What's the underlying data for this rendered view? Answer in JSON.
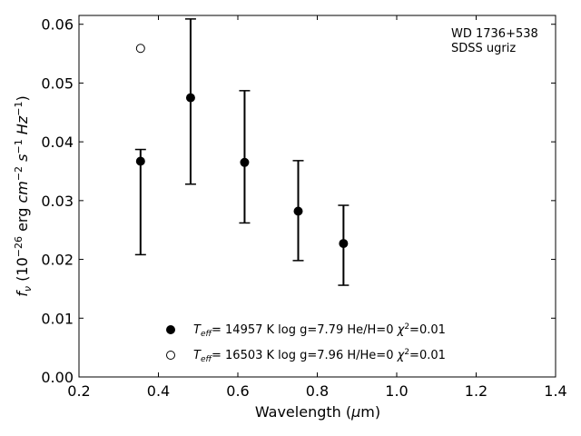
{
  "chart_data": {
    "type": "scatter",
    "title": "",
    "xlabel": "Wavelength (μm)",
    "ylabel": "f_ν (10^-26 erg cm^-2 s^-1 Hz^-1)",
    "xlim": [
      0.2,
      1.4
    ],
    "ylim": [
      0.0,
      0.0615
    ],
    "xticks": [
      0.2,
      0.4,
      0.6,
      0.8,
      1.0,
      1.2,
      1.4
    ],
    "xtick_labels": [
      "0.2",
      "0.4",
      "0.6",
      "0.8",
      "1.0",
      "1.2",
      "1.4"
    ],
    "yticks": [
      0.0,
      0.01,
      0.02,
      0.03,
      0.04,
      0.05,
      0.06
    ],
    "ytick_labels": [
      "0.00",
      "0.01",
      "0.02",
      "0.03",
      "0.04",
      "0.05",
      "0.06"
    ],
    "grid": false,
    "legend_position": "bottom-center",
    "annotation": [
      "WD 1736+538",
      "SDSS ugriz"
    ],
    "observed": {
      "x": [
        0.355,
        0.481,
        0.617,
        0.752,
        0.866
      ],
      "y": [
        0.0367,
        0.0475,
        0.0365,
        0.0282,
        0.0227
      ],
      "yerr_low": [
        0.0208,
        0.0328,
        0.0262,
        0.0198,
        0.0156
      ],
      "yerr_high": [
        0.0387,
        0.0609,
        0.0487,
        0.0368,
        0.0292
      ]
    },
    "series": [
      {
        "name": "Teff= 14957 K  log g=7.79  He/H=0  χ2=0.01",
        "marker": "filled-circle",
        "label_parts": {
          "teff": "14957",
          "logg": "7.79",
          "comp": "He/H=0",
          "chi2": "0.01"
        },
        "x": [
          0.355,
          0.481,
          0.617,
          0.752,
          0.866
        ],
        "y": [
          0.0367,
          0.0475,
          0.0365,
          0.0282,
          0.0227
        ]
      },
      {
        "name": "Teff= 16503 K  log g=7.96  H/He=0  χ2=0.01",
        "marker": "open-circle",
        "label_parts": {
          "teff": "16503",
          "logg": "7.96",
          "comp": "H/He=0",
          "chi2": "0.01"
        },
        "x": [
          0.355
        ],
        "y": [
          0.0559
        ]
      }
    ]
  }
}
